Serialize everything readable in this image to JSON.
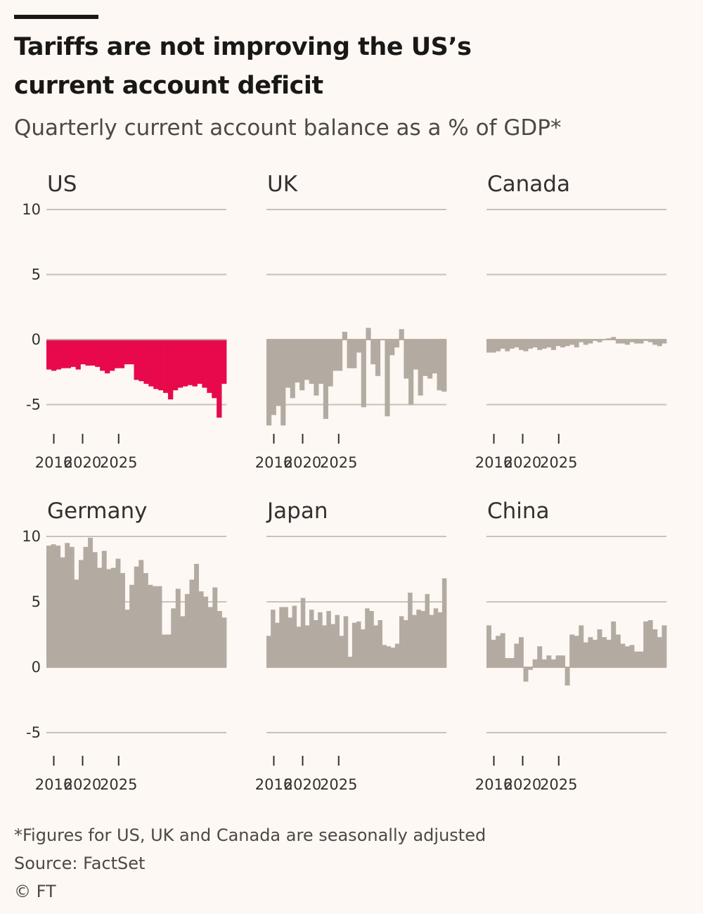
{
  "header": {
    "title": "Tariffs are not improving the US’s current account deficit",
    "subtitle": "Quarterly current account balance as a % of GDP*"
  },
  "footer": {
    "note": "*Figures for US, UK and Canada are seasonally adjusted",
    "source": "Source: FactSet",
    "credit": "© FT"
  },
  "colors": {
    "highlight": "#e8094b",
    "other": "#b3aba2",
    "background": "#fdf8f3"
  },
  "chart_data": [
    {
      "type": "bar",
      "title": "US",
      "start_quarter": "2015-Q3",
      "x_ticks": [
        "2016",
        "2020",
        "2025"
      ],
      "y_ticks": [
        10,
        5,
        0,
        -5
      ],
      "ylim": [
        -6.8,
        10
      ],
      "color": "#e8094b",
      "values": [
        -2.3,
        -2.4,
        -2.3,
        -2.2,
        -2.2,
        -2.1,
        -2.3,
        -1.9,
        -2.0,
        -2.0,
        -2.1,
        -2.4,
        -2.6,
        -2.4,
        -2.2,
        -2.2,
        -1.9,
        -1.9,
        -3.1,
        -3.2,
        -3.4,
        -3.6,
        -3.8,
        -3.9,
        -4.1,
        -4.6,
        -3.9,
        -3.7,
        -3.6,
        -3.5,
        -3.6,
        -3.4,
        -3.7,
        -4.1,
        -4.5,
        -6.0,
        -3.4
      ]
    },
    {
      "type": "bar",
      "title": "UK",
      "start_quarter": "2015-Q3",
      "x_ticks": [
        "2016",
        "2020",
        "2025"
      ],
      "y_ticks": [
        10,
        5,
        0,
        -5
      ],
      "ylim": [
        -6.8,
        10
      ],
      "color": "#b3aba2",
      "values": [
        -6.6,
        -5.8,
        -5.1,
        -6.6,
        -3.7,
        -4.5,
        -3.3,
        -3.9,
        -3.1,
        -3.4,
        -4.3,
        -3.4,
        -6.1,
        -3.6,
        -2.4,
        -2.4,
        0.6,
        -2.2,
        -2.2,
        -1.0,
        -5.2,
        0.9,
        -1.9,
        -2.8,
        0.0,
        -5.9,
        -1.2,
        -0.6,
        0.8,
        -3.0,
        -5.0,
        -2.3,
        -4.3,
        -2.8,
        -3.0,
        -2.6,
        -3.9,
        -4.0
      ]
    },
    {
      "type": "bar",
      "title": "Canada",
      "start_quarter": "2015-Q3",
      "x_ticks": [
        "2016",
        "2020",
        "2025"
      ],
      "y_ticks": [
        10,
        5,
        0,
        -5
      ],
      "ylim": [
        -6.8,
        10
      ],
      "color": "#b3aba2",
      "values": [
        -1.0,
        -1.0,
        -0.9,
        -0.7,
        -0.9,
        -0.7,
        -0.6,
        -0.8,
        -0.9,
        -0.7,
        -0.6,
        -0.8,
        -0.7,
        -0.6,
        -0.8,
        -0.5,
        -0.6,
        -0.5,
        -0.4,
        -0.6,
        -0.2,
        -0.4,
        -0.3,
        -0.1,
        -0.2,
        0.0,
        0.1,
        0.2,
        -0.3,
        -0.3,
        -0.4,
        -0.2,
        -0.3,
        -0.3,
        -0.1,
        -0.2,
        -0.4,
        -0.5,
        -0.3
      ]
    },
    {
      "type": "bar",
      "title": "Germany",
      "start_quarter": "2015-Q3",
      "x_ticks": [
        "2016",
        "2020",
        "2025"
      ],
      "y_ticks": [
        10,
        5,
        0,
        -5
      ],
      "ylim": [
        -6.8,
        10
      ],
      "color": "#b3aba2",
      "values": [
        9.3,
        9.4,
        9.3,
        8.4,
        9.5,
        9.2,
        6.7,
        8.2,
        9.2,
        9.9,
        8.8,
        7.6,
        8.9,
        7.5,
        7.6,
        8.3,
        7.2,
        4.4,
        6.3,
        7.7,
        8.2,
        7.2,
        6.3,
        6.2,
        6.2,
        2.5,
        2.5,
        4.5,
        6.0,
        3.9,
        5.6,
        6.7,
        7.9,
        5.8,
        5.4,
        4.6,
        6.1,
        4.3,
        3.8
      ]
    },
    {
      "type": "bar",
      "title": "Japan",
      "start_quarter": "2015-Q3",
      "x_ticks": [
        "2016",
        "2020",
        "2025"
      ],
      "y_ticks": [
        10,
        5,
        0,
        -5
      ],
      "ylim": [
        -6.8,
        10
      ],
      "color": "#b3aba2",
      "values": [
        2.4,
        4.4,
        3.4,
        4.6,
        4.6,
        3.8,
        4.7,
        3.1,
        5.3,
        3.2,
        4.4,
        3.6,
        4.2,
        3.2,
        4.3,
        3.3,
        4.0,
        2.4,
        3.9,
        0.8,
        3.4,
        3.5,
        2.9,
        4.5,
        4.3,
        3.2,
        3.6,
        1.7,
        1.6,
        1.5,
        1.8,
        3.9,
        3.6,
        5.7,
        4.0,
        4.4,
        4.3,
        5.6,
        4.0,
        4.5,
        4.2,
        6.8
      ]
    },
    {
      "type": "bar",
      "title": "China",
      "start_quarter": "2015-Q3",
      "x_ticks": [
        "2016",
        "2020",
        "2025"
      ],
      "y_ticks": [
        10,
        5,
        0,
        -5
      ],
      "ylim": [
        -6.8,
        10
      ],
      "color": "#b3aba2",
      "values": [
        3.2,
        2.1,
        2.4,
        2.6,
        0.7,
        0.7,
        1.8,
        2.3,
        -1.1,
        -0.2,
        0.6,
        1.6,
        0.6,
        0.9,
        0.6,
        0.9,
        0.9,
        -1.4,
        2.5,
        2.4,
        3.2,
        1.9,
        2.3,
        2.1,
        2.9,
        2.3,
        2.1,
        3.5,
        2.5,
        1.8,
        1.6,
        1.7,
        1.2,
        1.2,
        3.5,
        3.6,
        2.9,
        2.3,
        3.2
      ]
    }
  ]
}
